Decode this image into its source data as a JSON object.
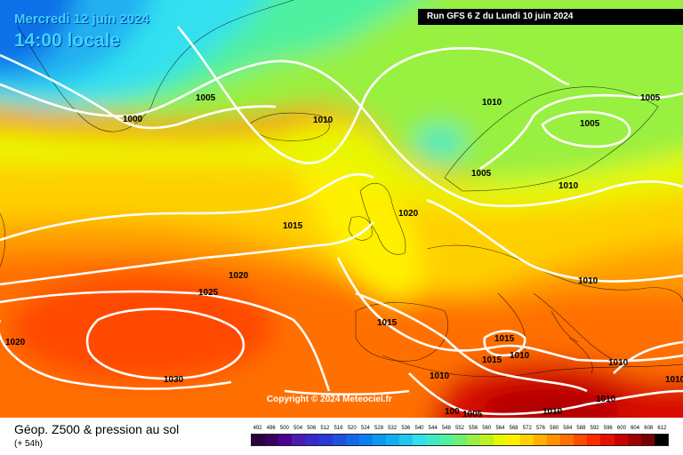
{
  "header": {
    "date": "Mercredi 12 juin 2024",
    "time": "14:00 locale",
    "run": "Run GFS 6 Z du Lundi 10 juin 2024"
  },
  "copyright": "Copyright © 2024 Meteociel.fr",
  "footer": {
    "title": "Géop. Z500 & pression au sol",
    "subtitle": "(+ 54h)"
  },
  "legend": {
    "values": [
      "492",
      "496",
      "500",
      "504",
      "508",
      "512",
      "516",
      "520",
      "524",
      "528",
      "532",
      "536",
      "540",
      "544",
      "548",
      "552",
      "556",
      "560",
      "564",
      "568",
      "572",
      "576",
      "580",
      "584",
      "588",
      "592",
      "596",
      "600",
      "604",
      "608",
      "612"
    ],
    "colors": [
      "#2a0040",
      "#3a0060",
      "#4a0090",
      "#4b1bb0",
      "#3a28c8",
      "#2a38d8",
      "#1f50e0",
      "#1468e8",
      "#0a80f0",
      "#0a98f0",
      "#10b0f0",
      "#20c8f0",
      "#30e0f0",
      "#40e8c8",
      "#50f0a0",
      "#70f070",
      "#98f040",
      "#c0f020",
      "#e8f800",
      "#fff000",
      "#ffd000",
      "#ffb000",
      "#ff9000",
      "#ff7000",
      "#ff4a00",
      "#ff2a00",
      "#e81000",
      "#c80000",
      "#a00000",
      "#780000",
      "#000000"
    ]
  },
  "isobars": [
    {
      "label": "1000"
    },
    {
      "label": "1005"
    },
    {
      "label": "1010"
    },
    {
      "label": "1015"
    },
    {
      "label": "1020"
    },
    {
      "label": "1025"
    },
    {
      "label": "1020"
    },
    {
      "label": "1010"
    },
    {
      "label": "1005"
    },
    {
      "label": "1010"
    },
    {
      "label": "1005"
    },
    {
      "label": "1005"
    },
    {
      "label": "1010"
    },
    {
      "label": "1015"
    },
    {
      "label": "1015"
    },
    {
      "label": "1015"
    },
    {
      "label": "1010"
    },
    {
      "label": "1010"
    },
    {
      "label": "1010"
    },
    {
      "label": "1030"
    },
    {
      "label": "1010"
    },
    {
      "label": "1005"
    },
    {
      "label": "1010"
    },
    {
      "label": "1010"
    },
    {
      "label": "1020"
    },
    {
      "label": "100"
    }
  ]
}
